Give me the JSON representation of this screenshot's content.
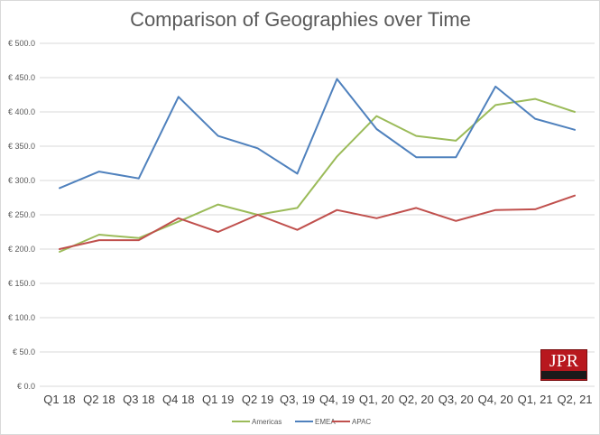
{
  "chart_data": {
    "type": "line",
    "title": "Comparison of Geographies over Time",
    "xlabel": "",
    "ylabel": "",
    "categories": [
      "Q1 18",
      "Q2 18",
      "Q3 18",
      "Q4 18",
      "Q1 19",
      "Q2 19",
      "Q3, 19",
      "Q4, 19",
      "Q1, 20",
      "Q2, 20",
      "Q3, 20",
      "Q4, 20",
      "Q1, 21",
      "Q2, 21"
    ],
    "ylim": [
      0,
      500
    ],
    "yticks": [
      0,
      50,
      100,
      150,
      200,
      250,
      300,
      350,
      400,
      450,
      500
    ],
    "ytick_labels": [
      "€ 0.0",
      "€ 50.0",
      "€ 100.0",
      "€ 150.0",
      "€ 200.0",
      "€ 250.0",
      "€ 300.0",
      "€ 350.0",
      "€ 400.0",
      "€ 450.0",
      "€ 500.0"
    ],
    "grid": true,
    "legend_position": "bottom",
    "series": [
      {
        "name": "Americas",
        "color": "#9bbb59",
        "values": [
          196,
          221,
          216,
          240,
          265,
          250,
          260,
          335,
          394,
          365,
          358,
          410,
          419,
          400
        ]
      },
      {
        "name": "EMEA",
        "color": "#4f81bd",
        "values": [
          289,
          313,
          303,
          422,
          365,
          347,
          310,
          448,
          375,
          334,
          334,
          437,
          390,
          374
        ]
      },
      {
        "name": "APAC",
        "color": "#c0504d",
        "values": [
          200,
          213,
          213,
          245,
          225,
          250,
          228,
          257,
          245,
          260,
          241,
          257,
          258,
          278
        ]
      }
    ]
  },
  "logo": {
    "text": "JPR",
    "subtitle": "Jon Peddie Research"
  }
}
